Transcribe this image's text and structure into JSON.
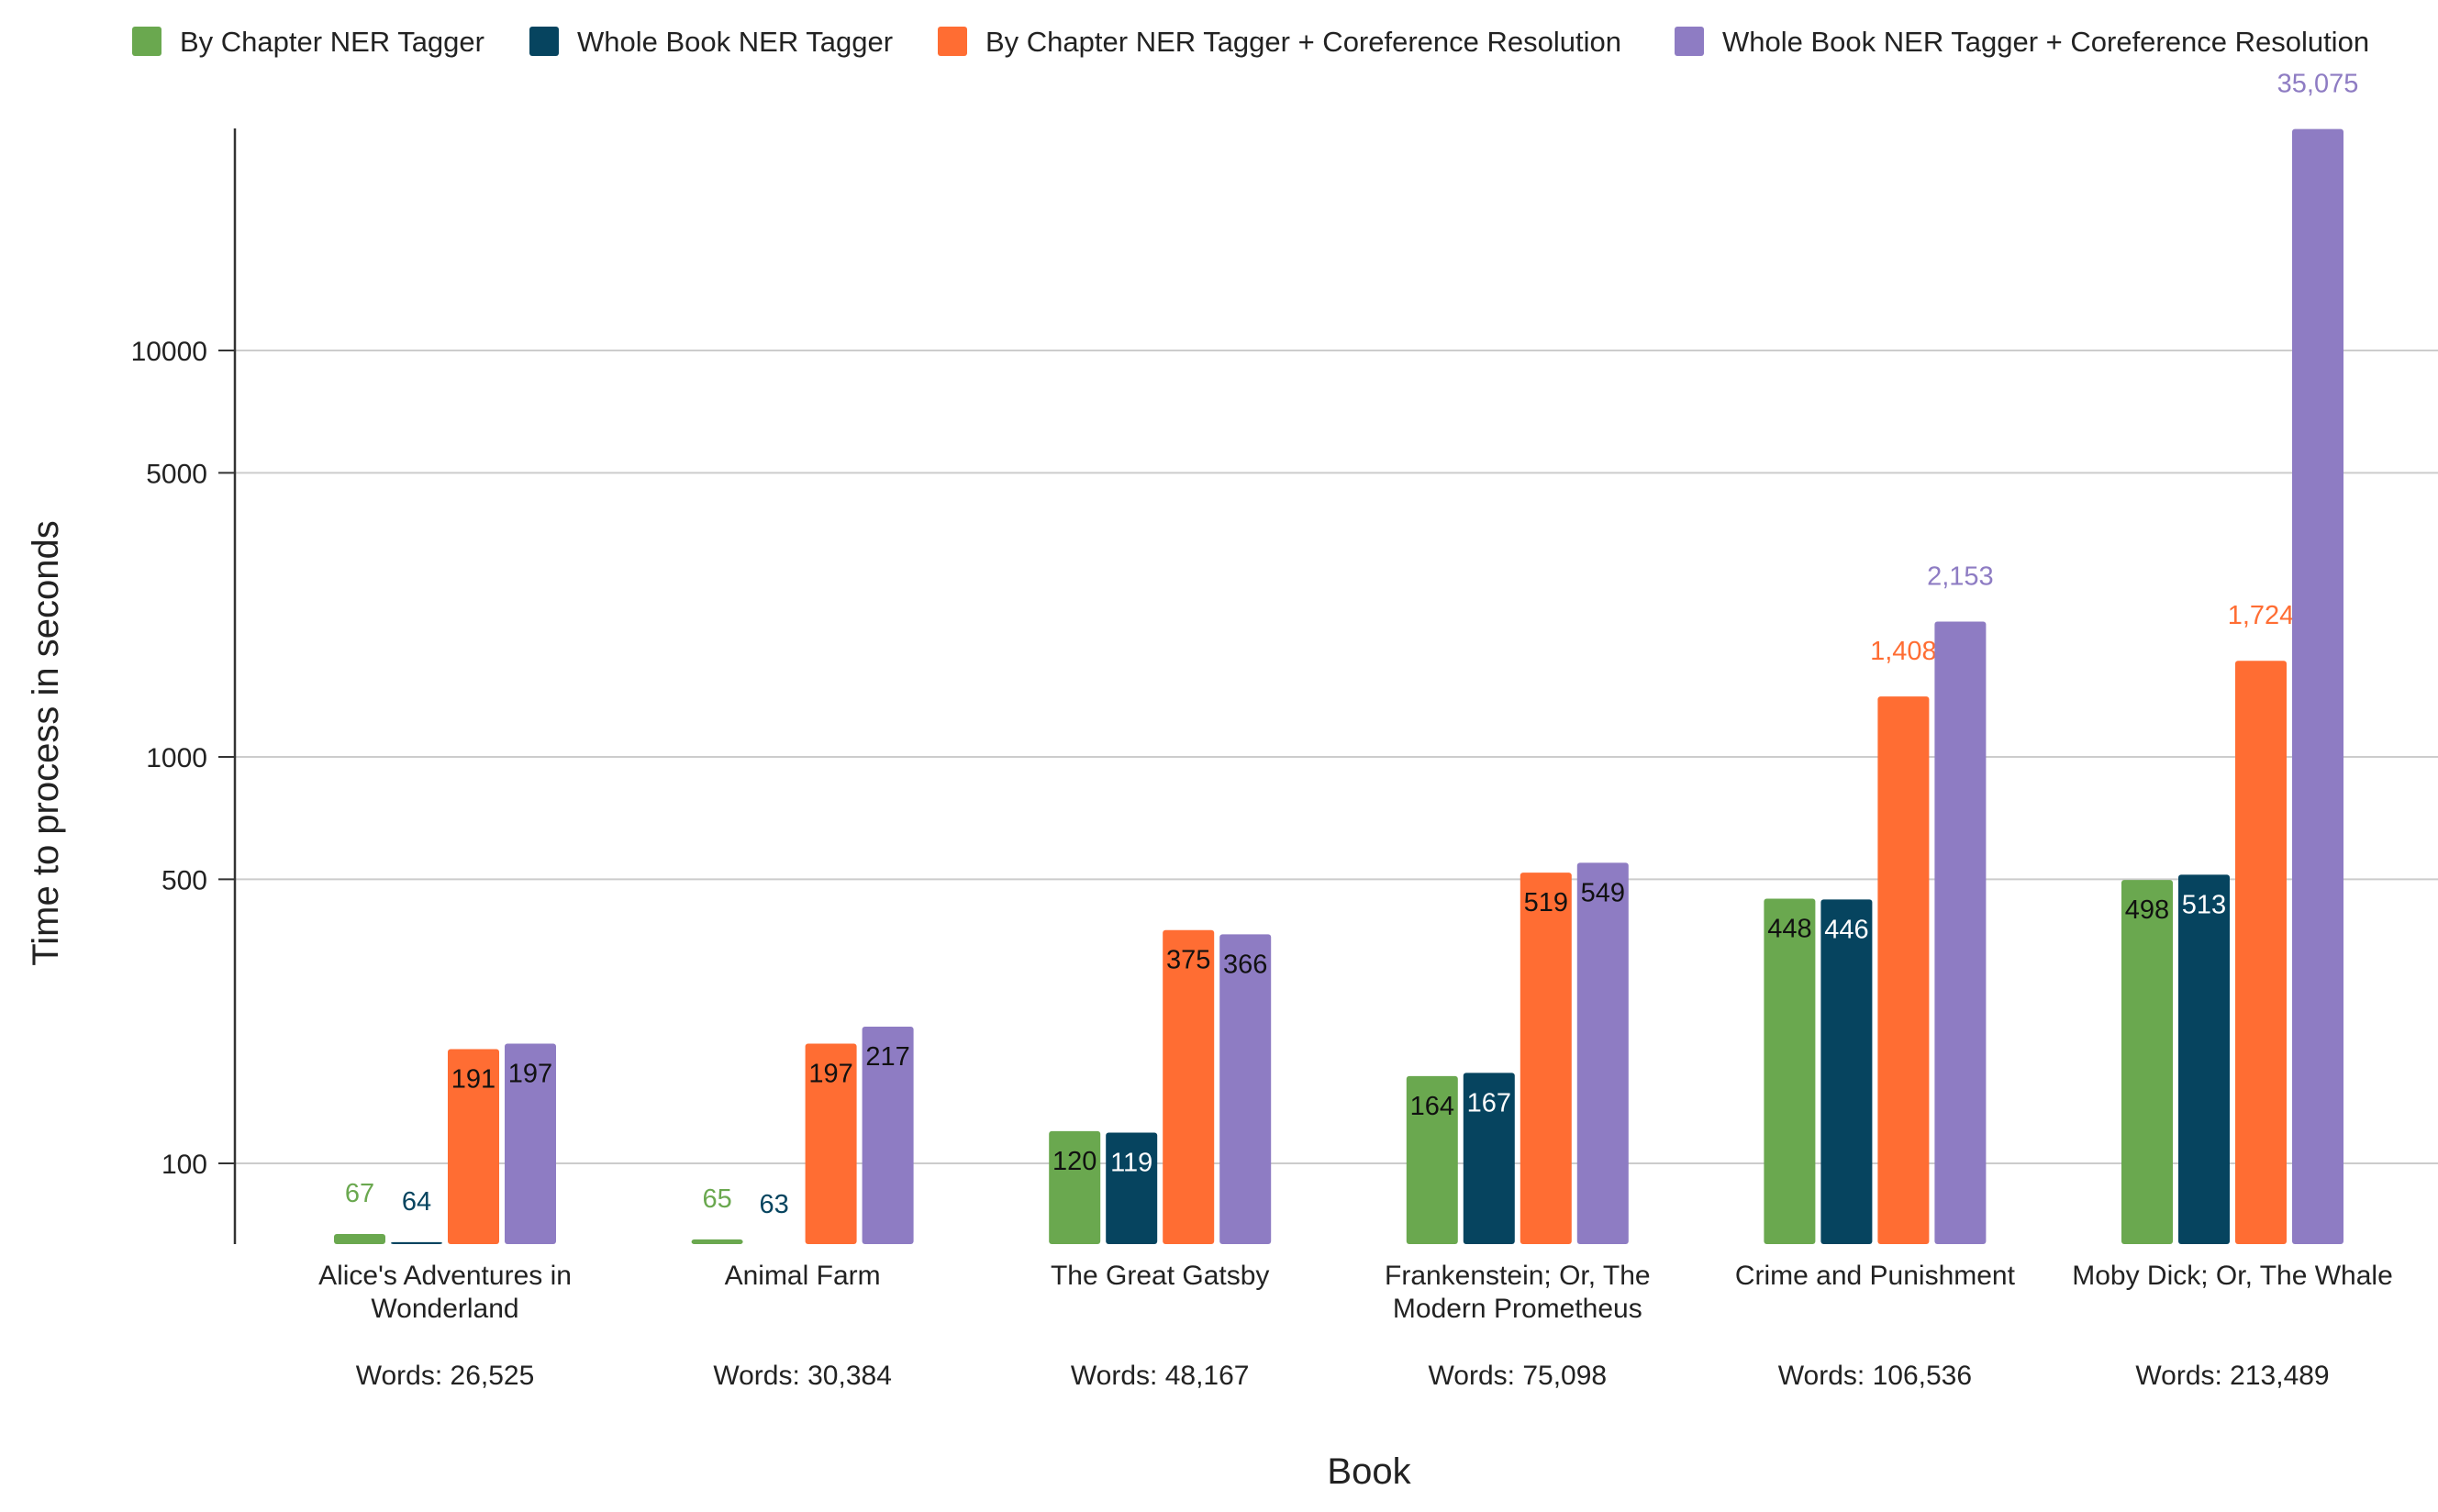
{
  "chart_data": {
    "type": "bar",
    "xlabel": "Book",
    "ylabel": "Time to process in seconds",
    "yscale": "log",
    "ylim": [
      70,
      35075
    ],
    "yticks": [
      100,
      500,
      1000,
      5000,
      10000
    ],
    "grid": true,
    "legend_position": "top",
    "categories": [
      [
        "Alice's Adventures in",
        "Wonderland"
      ],
      [
        "Animal Farm"
      ],
      [
        "The Great Gatsby"
      ],
      [
        "Frankenstein; Or, The",
        "Modern Prometheus"
      ],
      [
        "Crime and Punishment"
      ],
      [
        "Moby Dick; Or, The Whale"
      ]
    ],
    "word_counts": [
      "Words: 26,525",
      "Words: 30,384",
      "Words: 48,167",
      "Words: 75,098",
      "Words: 106,536",
      "Words: 213,489"
    ],
    "series": [
      {
        "name": "By Chapter NER Tagger",
        "color": "#6aa84f",
        "values": [
          67,
          65,
          120,
          164,
          448,
          498
        ],
        "labels": [
          "67",
          "65",
          "120",
          "164",
          "448",
          "498"
        ]
      },
      {
        "name": "Whole Book NER Tagger",
        "color": "#06445f",
        "values": [
          64,
          63,
          119,
          167,
          446,
          513
        ],
        "labels": [
          "64",
          "63",
          "119",
          "167",
          "446",
          "513"
        ]
      },
      {
        "name": "By Chapter NER Tagger + Coreference Resolution",
        "color": "#ff6d33",
        "values": [
          191,
          197,
          375,
          519,
          1408,
          1724
        ],
        "labels": [
          "191",
          "197",
          "375",
          "519",
          "1,408",
          "1,724"
        ]
      },
      {
        "name": "Whole Book NER Tagger + Coreference Resolution",
        "color": "#8e7cc3",
        "values": [
          197,
          217,
          366,
          549,
          2153,
          35075
        ],
        "labels": [
          "197",
          "217",
          "366",
          "549",
          "2,153",
          "35,075"
        ]
      }
    ]
  }
}
